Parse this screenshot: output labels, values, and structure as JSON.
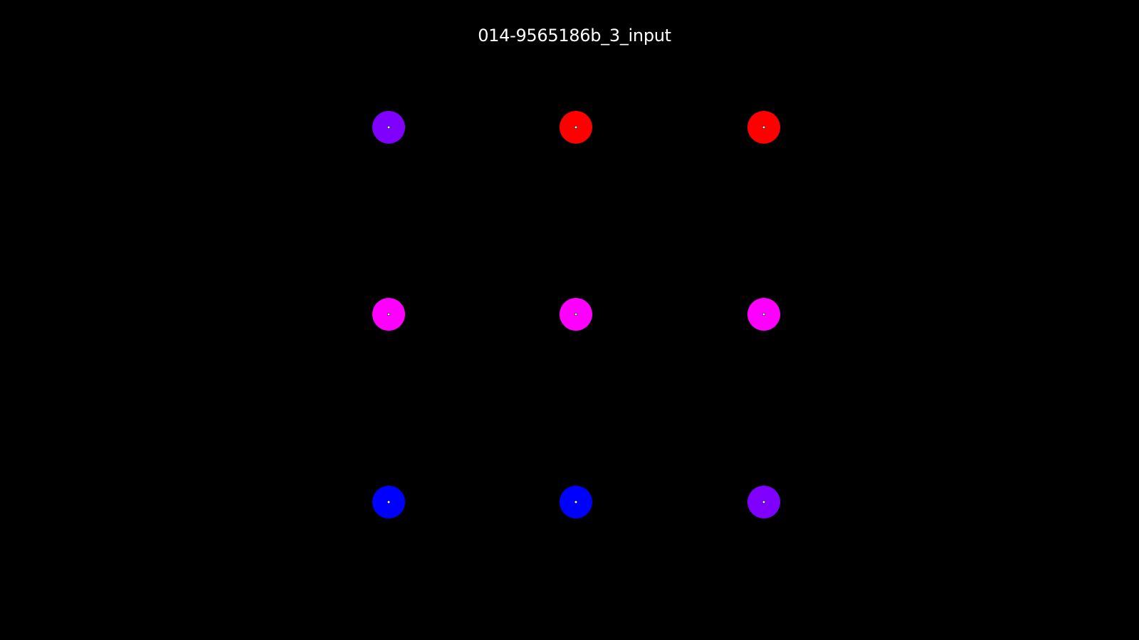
{
  "title": "014-9565186b_3_input",
  "grid": {
    "rows": [
      [
        {
          "color_name": "violet",
          "color": "#8000ff"
        },
        {
          "color_name": "red",
          "color": "#ff0000"
        },
        {
          "color_name": "red",
          "color": "#ff0000"
        }
      ],
      [
        {
          "color_name": "magenta",
          "color": "#ff00ff"
        },
        {
          "color_name": "magenta",
          "color": "#ff00ff"
        },
        {
          "color_name": "magenta",
          "color": "#ff00ff"
        }
      ],
      [
        {
          "color_name": "blue",
          "color": "#0000ff"
        },
        {
          "color_name": "blue",
          "color": "#0000ff"
        },
        {
          "color_name": "violet",
          "color": "#8000ff"
        }
      ]
    ]
  },
  "colors": {
    "background": "#000000",
    "title_text": "#ffffff",
    "center_dot_fill": "#ffffff",
    "center_dot_stroke": "#000000"
  }
}
